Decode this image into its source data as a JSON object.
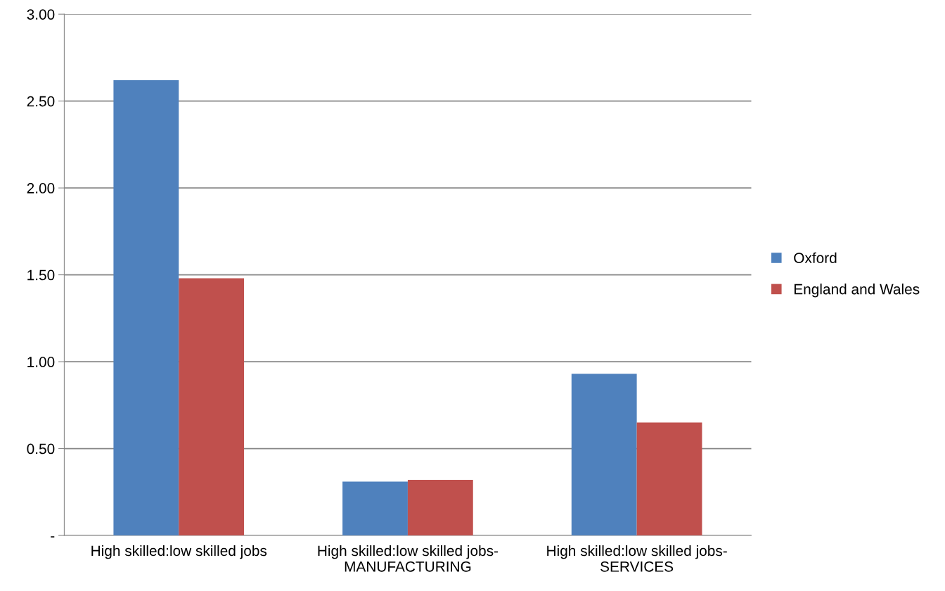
{
  "chart_data": {
    "type": "bar",
    "categories": [
      "High skilled:low skilled jobs",
      "High skilled:low skilled jobs-\nMANUFACTURING",
      "High skilled:low skilled jobs-\nSERVICES"
    ],
    "series": [
      {
        "name": "Oxford",
        "color": "#4f81bd",
        "values": [
          2.62,
          0.31,
          0.93
        ]
      },
      {
        "name": "England and Wales",
        "color": "#c0504d",
        "values": [
          1.48,
          0.32,
          0.65
        ]
      }
    ],
    "ylim": [
      0,
      3
    ],
    "yticks": [
      {
        "value": 0,
        "label": "-"
      },
      {
        "value": 0.5,
        "label": "0.50"
      },
      {
        "value": 1,
        "label": "1.00"
      },
      {
        "value": 1.5,
        "label": "1.50"
      },
      {
        "value": 2,
        "label": "2.00"
      },
      {
        "value": 2.5,
        "label": "2.50"
      },
      {
        "value": 3,
        "label": "3.00"
      }
    ],
    "grid": "y",
    "legend": "right"
  }
}
